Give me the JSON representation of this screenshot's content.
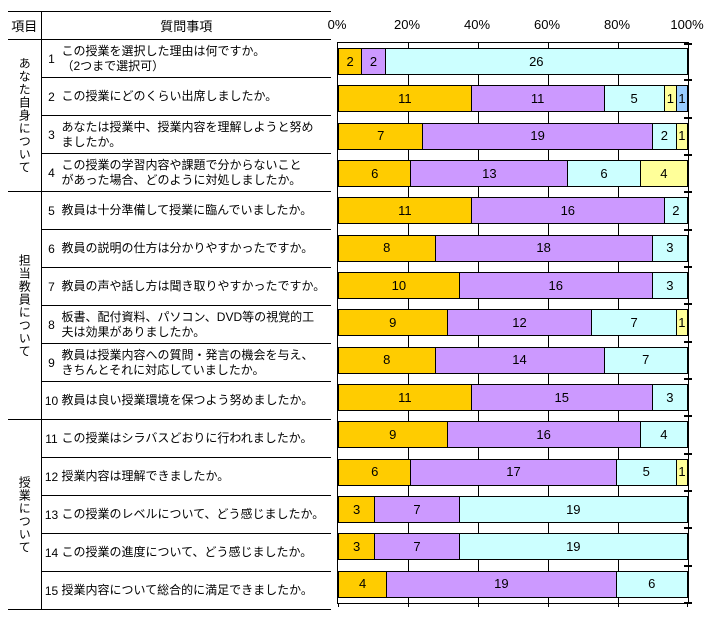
{
  "table": {
    "header": {
      "col1": "項目",
      "col2": "質問事項"
    },
    "groups": [
      {
        "label": "あなた自身について",
        "questions": [
          {
            "no": "1",
            "lines": [
              "この授業を選択した理由は何ですか。",
              "（2つまで選択可）"
            ]
          },
          {
            "no": "2",
            "lines": [
              "この授業にどのくらい出席しましたか。"
            ]
          },
          {
            "no": "3",
            "lines": [
              "あなたは授業中、授業内容を理解しようと努め",
              "ましたか。"
            ]
          },
          {
            "no": "4",
            "lines": [
              "この授業の学習内容や課題で分からないこと",
              "があった場合、どのように対処しましたか。"
            ]
          }
        ]
      },
      {
        "label": "担当教員について",
        "questions": [
          {
            "no": "5",
            "lines": [
              "教員は十分準備して授業に臨んでいましたか。"
            ]
          },
          {
            "no": "6",
            "lines": [
              "教員の説明の仕方は分かりやすかったですか。"
            ]
          },
          {
            "no": "7",
            "lines": [
              "教員の声や話し方は聞き取りやすかったですか。"
            ]
          },
          {
            "no": "8",
            "lines": [
              "板書、配付資料、パソコン、DVD等の視覚的工",
              "夫は効果がありましたか。"
            ]
          },
          {
            "no": "9",
            "lines": [
              "教員は授業内容への質問・発言の機会を与え、",
              "きちんとそれに対応していましたか。"
            ]
          },
          {
            "no": "10",
            "lines": [
              "教員は良い授業環境を保つよう努めましたか。"
            ]
          }
        ]
      },
      {
        "label": "授業について",
        "questions": [
          {
            "no": "11",
            "lines": [
              "この授業はシラバスどおりに行われましたか。"
            ]
          },
          {
            "no": "12",
            "lines": [
              "授業内容は理解できましたか。"
            ]
          },
          {
            "no": "13",
            "lines": [
              "この授業のレベルについて、どう感じましたか。"
            ]
          },
          {
            "no": "14",
            "lines": [
              "この授業の進度について、どう感じましたか。"
            ]
          },
          {
            "no": "15",
            "lines": [
              "授業内容について総合的に満足できましたか。"
            ]
          }
        ]
      }
    ]
  },
  "chart_data": {
    "type": "bar",
    "orientation": "horizontal",
    "stacked": true,
    "value_axis": {
      "position": "top",
      "min": 0,
      "max": 100,
      "tick_labels": [
        "0%",
        "20%",
        "40%",
        "60%",
        "80%",
        "100%"
      ]
    },
    "gridlines": "vertical every 20%",
    "palette": {
      "gold": "#FFCC00",
      "lavender": "#CC99FF",
      "cyan": "#CCFFFF",
      "yellow": "#FFFF99",
      "blue": "#99CCFF"
    },
    "rows": [
      {
        "q": 1,
        "total": 30,
        "segments": [
          [
            2,
            "gold"
          ],
          [
            2,
            "lavender"
          ],
          [
            26,
            "cyan"
          ]
        ]
      },
      {
        "q": 2,
        "total": 29,
        "segments": [
          [
            11,
            "gold"
          ],
          [
            11,
            "lavender"
          ],
          [
            5,
            "cyan"
          ],
          [
            1,
            "yellow"
          ],
          [
            1,
            "blue"
          ]
        ]
      },
      {
        "q": 3,
        "total": 29,
        "segments": [
          [
            7,
            "gold"
          ],
          [
            19,
            "lavender"
          ],
          [
            2,
            "cyan"
          ],
          [
            1,
            "yellow"
          ]
        ]
      },
      {
        "q": 4,
        "total": 29,
        "segments": [
          [
            6,
            "gold"
          ],
          [
            13,
            "lavender"
          ],
          [
            6,
            "cyan"
          ],
          [
            4,
            "yellow"
          ]
        ]
      },
      {
        "q": 5,
        "total": 29,
        "segments": [
          [
            11,
            "gold"
          ],
          [
            16,
            "lavender"
          ],
          [
            2,
            "cyan"
          ]
        ]
      },
      {
        "q": 6,
        "total": 29,
        "segments": [
          [
            8,
            "gold"
          ],
          [
            18,
            "lavender"
          ],
          [
            3,
            "cyan"
          ]
        ]
      },
      {
        "q": 7,
        "total": 29,
        "segments": [
          [
            10,
            "gold"
          ],
          [
            16,
            "lavender"
          ],
          [
            3,
            "cyan"
          ]
        ]
      },
      {
        "q": 8,
        "total": 29,
        "segments": [
          [
            9,
            "gold"
          ],
          [
            12,
            "lavender"
          ],
          [
            7,
            "cyan"
          ],
          [
            1,
            "yellow"
          ]
        ]
      },
      {
        "q": 9,
        "total": 29,
        "segments": [
          [
            8,
            "gold"
          ],
          [
            14,
            "lavender"
          ],
          [
            7,
            "cyan"
          ]
        ]
      },
      {
        "q": 10,
        "total": 29,
        "segments": [
          [
            11,
            "gold"
          ],
          [
            15,
            "lavender"
          ],
          [
            3,
            "cyan"
          ]
        ]
      },
      {
        "q": 11,
        "total": 29,
        "segments": [
          [
            9,
            "gold"
          ],
          [
            16,
            "lavender"
          ],
          [
            4,
            "cyan"
          ]
        ]
      },
      {
        "q": 12,
        "total": 29,
        "segments": [
          [
            6,
            "gold"
          ],
          [
            17,
            "lavender"
          ],
          [
            5,
            "cyan"
          ],
          [
            1,
            "yellow"
          ]
        ]
      },
      {
        "q": 13,
        "total": 29,
        "segments": [
          [
            3,
            "gold"
          ],
          [
            7,
            "lavender"
          ],
          [
            19,
            "cyan"
          ]
        ]
      },
      {
        "q": 14,
        "total": 29,
        "segments": [
          [
            3,
            "gold"
          ],
          [
            7,
            "lavender"
          ],
          [
            19,
            "cyan"
          ]
        ]
      },
      {
        "q": 15,
        "total": 29,
        "segments": [
          [
            4,
            "gold"
          ],
          [
            19,
            "lavender"
          ],
          [
            6,
            "cyan"
          ]
        ]
      }
    ]
  }
}
